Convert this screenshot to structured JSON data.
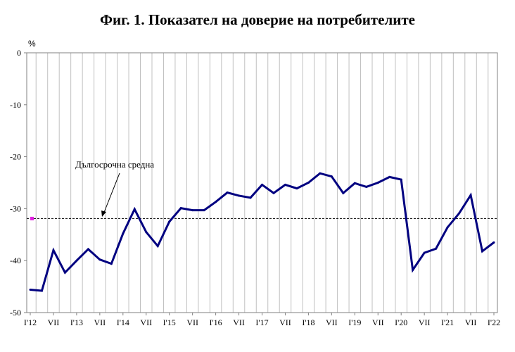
{
  "chart_data": {
    "type": "line",
    "title": "Фиг. 1. Показател на доверие на потребителите",
    "ylabel": "%",
    "ylim": [
      -50,
      0
    ],
    "yticks": [
      0,
      -10,
      -20,
      -30,
      -40,
      -50
    ],
    "grid": "vertical",
    "x_tick_labels": [
      "I'12",
      "VII",
      "I'13",
      "VII",
      "I'14",
      "VII",
      "I'15",
      "VII",
      "I'16",
      "VII",
      "I'17",
      "VII",
      "I'18",
      "VII",
      "I'19",
      "VII",
      "I'20",
      "VII",
      "I'21",
      "VII",
      "I'22"
    ],
    "periods": [
      "I'12",
      "IV'12",
      "VII'12",
      "X'12",
      "I'13",
      "IV'13",
      "VII'13",
      "X'13",
      "I'14",
      "IV'14",
      "VII'14",
      "X'14",
      "I'15",
      "IV'15",
      "VII'15",
      "X'15",
      "I'16",
      "IV'16",
      "VII'16",
      "X'16",
      "I'17",
      "IV'17",
      "VII'17",
      "X'17",
      "I'18",
      "IV'18",
      "VII'18",
      "X'18",
      "I'19",
      "IV'19",
      "VII'19",
      "X'19",
      "I'20",
      "IV'20",
      "VII'20",
      "X'20",
      "I'21",
      "IV'21",
      "VII'21",
      "X'21",
      "I'22"
    ],
    "series": [
      {
        "name": "Показател на доверие на потребителите",
        "color": "#000080",
        "values": [
          -45.6,
          -45.8,
          -38.0,
          -42.3,
          -40.0,
          -37.8,
          -39.8,
          -40.6,
          -34.8,
          -30.1,
          -34.5,
          -37.2,
          -32.5,
          -29.9,
          -30.3,
          -30.3,
          -28.7,
          -26.9,
          -27.5,
          -27.9,
          -25.4,
          -27.0,
          -25.4,
          -26.1,
          -25.0,
          -23.2,
          -23.8,
          -27.0,
          -25.1,
          -25.8,
          -25.0,
          -23.9,
          -24.4,
          -41.8,
          -38.5,
          -37.7,
          -33.6,
          -30.9,
          -27.4,
          -38.2,
          -36.5
        ]
      }
    ],
    "reference_line": {
      "label": "Дългосрочна средна",
      "value": -31.9,
      "style": "dashed",
      "marker_color": "#e020e0"
    },
    "annotations": [
      "Дългосрочна средна"
    ]
  }
}
